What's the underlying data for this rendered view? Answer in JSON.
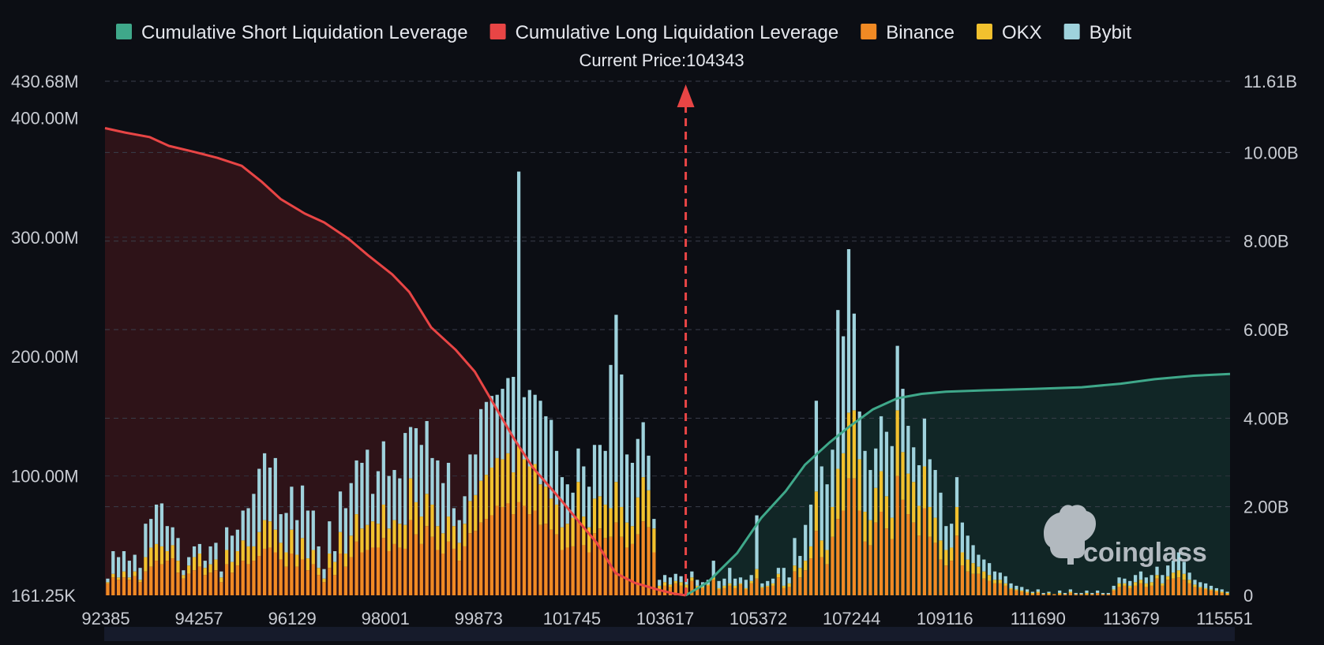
{
  "chart_data": {
    "type": "bar",
    "title": "",
    "current_price_label": "Current Price:104343",
    "current_price": 104343,
    "legend": [
      {
        "name": "Cumulative Short Liquidation Leverage",
        "color": "#3fa88a"
      },
      {
        "name": "Cumulative Long Liquidation Leverage",
        "color": "#e84545"
      },
      {
        "name": "Binance",
        "color": "#f18a24"
      },
      {
        "name": "OKX",
        "color": "#f2c12e"
      },
      {
        "name": "Bybit",
        "color": "#9fd2dc"
      }
    ],
    "x_range": [
      92385,
      115551
    ],
    "x_tick_labels": [
      "92385",
      "94257",
      "96129",
      "98001",
      "99873",
      "101745",
      "103617",
      "105372",
      "107244",
      "109116",
      "111690",
      "113679",
      "115551"
    ],
    "left_axis": {
      "ylim": [
        0,
        430.68
      ],
      "unit": "M",
      "ticks": [
        {
          "value": 0,
          "label": "161.25K"
        },
        {
          "value": 100,
          "label": "100.00M"
        },
        {
          "value": 200,
          "label": "200.00M"
        },
        {
          "value": 300,
          "label": "300.00M"
        },
        {
          "value": 400,
          "label": "400.00M"
        },
        {
          "value": 430.68,
          "label": "430.68M"
        }
      ]
    },
    "right_axis": {
      "ylim": [
        0,
        11.61
      ],
      "unit": "B",
      "ticks": [
        {
          "value": 0,
          "label": "0"
        },
        {
          "value": 2,
          "label": "2.00B"
        },
        {
          "value": 4,
          "label": "4.00B"
        },
        {
          "value": 6,
          "label": "6.00B"
        },
        {
          "value": 8,
          "label": "8.00B"
        },
        {
          "value": 10,
          "label": "10.00B"
        },
        {
          "value": 11.61,
          "label": "11.61B"
        }
      ]
    },
    "bar_series": [
      "Binance",
      "OKX",
      "Bybit"
    ],
    "bars_millions": [
      [
        10,
        1,
        3
      ],
      [
        15,
        3,
        19
      ],
      [
        13,
        2,
        17
      ],
      [
        15,
        5,
        17
      ],
      [
        13,
        2,
        14
      ],
      [
        16,
        4,
        14
      ],
      [
        11,
        2,
        10
      ],
      [
        20,
        12,
        28
      ],
      [
        24,
        16,
        24
      ],
      [
        29,
        14,
        33
      ],
      [
        26,
        15,
        36
      ],
      [
        29,
        8,
        21
      ],
      [
        31,
        11,
        15
      ],
      [
        19,
        10,
        19
      ],
      [
        14,
        3,
        4
      ],
      [
        18,
        7,
        7
      ],
      [
        21,
        11,
        9
      ],
      [
        24,
        11,
        8
      ],
      [
        17,
        6,
        6
      ],
      [
        19,
        7,
        15
      ],
      [
        21,
        9,
        14
      ],
      [
        11,
        4,
        5
      ],
      [
        26,
        12,
        19
      ],
      [
        19,
        9,
        22
      ],
      [
        25,
        12,
        18
      ],
      [
        29,
        17,
        25
      ],
      [
        26,
        15,
        32
      ],
      [
        29,
        12,
        44
      ],
      [
        33,
        20,
        53
      ],
      [
        39,
        24,
        56
      ],
      [
        40,
        22,
        45
      ],
      [
        36,
        19,
        60
      ],
      [
        30,
        14,
        24
      ],
      [
        24,
        12,
        33
      ],
      [
        35,
        20,
        36
      ],
      [
        24,
        10,
        29
      ],
      [
        30,
        18,
        44
      ],
      [
        21,
        10,
        40
      ],
      [
        26,
        12,
        33
      ],
      [
        17,
        6,
        18
      ],
      [
        11,
        3,
        8
      ],
      [
        23,
        12,
        27
      ],
      [
        17,
        11,
        9
      ],
      [
        35,
        18,
        34
      ],
      [
        24,
        11,
        38
      ],
      [
        32,
        18,
        44
      ],
      [
        45,
        23,
        45
      ],
      [
        36,
        20,
        55
      ],
      [
        38,
        21,
        63
      ],
      [
        40,
        22,
        23
      ],
      [
        40,
        20,
        44
      ],
      [
        48,
        28,
        53
      ],
      [
        37,
        19,
        44
      ],
      [
        43,
        20,
        42
      ],
      [
        40,
        20,
        38
      ],
      [
        39,
        20,
        77
      ],
      [
        63,
        35,
        43
      ],
      [
        51,
        27,
        62
      ],
      [
        43,
        23,
        60
      ],
      [
        58,
        27,
        61
      ],
      [
        49,
        27,
        39
      ],
      [
        38,
        20,
        55
      ],
      [
        35,
        17,
        42
      ],
      [
        45,
        21,
        45
      ],
      [
        39,
        19,
        15
      ],
      [
        29,
        15,
        19
      ],
      [
        41,
        19,
        23
      ],
      [
        52,
        27,
        39
      ],
      [
        54,
        30,
        34
      ],
      [
        61,
        35,
        60
      ],
      [
        64,
        37,
        61
      ],
      [
        67,
        40,
        60
      ],
      [
        75,
        40,
        53
      ],
      [
        74,
        40,
        59
      ],
      [
        77,
        42,
        63
      ],
      [
        68,
        35,
        80
      ],
      [
        78,
        47,
        230
      ],
      [
        75,
        39,
        52
      ],
      [
        68,
        40,
        64
      ],
      [
        71,
        39,
        58
      ],
      [
        59,
        34,
        70
      ],
      [
        60,
        31,
        59
      ],
      [
        55,
        26,
        66
      ],
      [
        51,
        25,
        45
      ],
      [
        38,
        19,
        42
      ],
      [
        40,
        20,
        33
      ],
      [
        41,
        24,
        21
      ],
      [
        61,
        34,
        28
      ],
      [
        42,
        24,
        42
      ],
      [
        36,
        21,
        34
      ],
      [
        52,
        29,
        45
      ],
      [
        56,
        27,
        43
      ],
      [
        48,
        28,
        45
      ],
      [
        49,
        24,
        120
      ],
      [
        61,
        34,
        140
      ],
      [
        49,
        25,
        111
      ],
      [
        40,
        21,
        57
      ],
      [
        43,
        15,
        53
      ],
      [
        51,
        31,
        49
      ],
      [
        62,
        37,
        46
      ],
      [
        57,
        31,
        29
      ],
      [
        36,
        20,
        8
      ],
      [
        5,
        3,
        5
      ],
      [
        8,
        3,
        6
      ],
      [
        7,
        2,
        6
      ],
      [
        10,
        2,
        6
      ],
      [
        8,
        3,
        5
      ],
      [
        6,
        3,
        5
      ],
      [
        12,
        3,
        5
      ],
      [
        6,
        2,
        5
      ],
      [
        6,
        1,
        4
      ],
      [
        8,
        1,
        4
      ],
      [
        13,
        2,
        14
      ],
      [
        5,
        1,
        6
      ],
      [
        6,
        2,
        6
      ],
      [
        8,
        2,
        13
      ],
      [
        6,
        2,
        6
      ],
      [
        9,
        1,
        5
      ],
      [
        5,
        1,
        7
      ],
      [
        10,
        2,
        5
      ],
      [
        14,
        8,
        45
      ],
      [
        6,
        1,
        3
      ],
      [
        7,
        1,
        4
      ],
      [
        8,
        2,
        4
      ],
      [
        15,
        3,
        5
      ],
      [
        6,
        2,
        15
      ],
      [
        7,
        3,
        5
      ],
      [
        20,
        5,
        23
      ],
      [
        15,
        8,
        10
      ],
      [
        21,
        8,
        30
      ],
      [
        31,
        10,
        35
      ],
      [
        54,
        33,
        76
      ],
      [
        32,
        14,
        62
      ],
      [
        26,
        12,
        55
      ],
      [
        49,
        25,
        48
      ],
      [
        64,
        42,
        133
      ],
      [
        71,
        48,
        98
      ],
      [
        98,
        55,
        137
      ],
      [
        98,
        57,
        81
      ],
      [
        71,
        43,
        40
      ],
      [
        45,
        25,
        51
      ],
      [
        42,
        21,
        42
      ],
      [
        61,
        29,
        33
      ],
      [
        70,
        34,
        46
      ],
      [
        56,
        27,
        54
      ],
      [
        47,
        18,
        60
      ],
      [
        100,
        55,
        54
      ],
      [
        80,
        40,
        53
      ],
      [
        68,
        34,
        40
      ],
      [
        61,
        34,
        29
      ],
      [
        50,
        25,
        34
      ],
      [
        73,
        35,
        40
      ],
      [
        49,
        25,
        40
      ],
      [
        44,
        21,
        40
      ],
      [
        30,
        16,
        40
      ],
      [
        25,
        13,
        20
      ],
      [
        29,
        11,
        20
      ],
      [
        50,
        24,
        25
      ],
      [
        25,
        11,
        25
      ],
      [
        20,
        10,
        20
      ],
      [
        18,
        9,
        15
      ],
      [
        18,
        6,
        10
      ],
      [
        14,
        6,
        10
      ],
      [
        12,
        5,
        10
      ],
      [
        10,
        3,
        7
      ],
      [
        10,
        3,
        6
      ],
      [
        8,
        2,
        6
      ],
      [
        5,
        1,
        4
      ],
      [
        4,
        1,
        3
      ],
      [
        3,
        1,
        3
      ],
      [
        2,
        1,
        2
      ],
      [
        1,
        1,
        1
      ],
      [
        2,
        1,
        2
      ],
      [
        1,
        0,
        1
      ],
      [
        1,
        1,
        1
      ],
      [
        1,
        0,
        0
      ],
      [
        1,
        1,
        2
      ],
      [
        1,
        0,
        1
      ],
      [
        2,
        1,
        2
      ],
      [
        1,
        0,
        1
      ],
      [
        1,
        0,
        1
      ],
      [
        1,
        1,
        2
      ],
      [
        1,
        0,
        1
      ],
      [
        2,
        0,
        2
      ],
      [
        1,
        0,
        1
      ],
      [
        1,
        0,
        1
      ],
      [
        4,
        1,
        3
      ],
      [
        7,
        3,
        5
      ],
      [
        8,
        2,
        4
      ],
      [
        6,
        2,
        4
      ],
      [
        8,
        3,
        6
      ],
      [
        10,
        3,
        7
      ],
      [
        7,
        3,
        5
      ],
      [
        8,
        3,
        6
      ],
      [
        14,
        3,
        7
      ],
      [
        8,
        2,
        7
      ],
      [
        13,
        3,
        9
      ],
      [
        14,
        5,
        10
      ],
      [
        15,
        6,
        15
      ],
      [
        13,
        5,
        10
      ],
      [
        10,
        3,
        6
      ],
      [
        7,
        2,
        4
      ],
      [
        6,
        1,
        4
      ],
      [
        5,
        1,
        4
      ],
      [
        4,
        1,
        3
      ],
      [
        3,
        1,
        2
      ],
      [
        2,
        1,
        2
      ],
      [
        1,
        1,
        1
      ]
    ],
    "cumulative_long_B": [
      [
        92385,
        10.55
      ],
      [
        92800,
        10.45
      ],
      [
        93300,
        10.35
      ],
      [
        93700,
        10.15
      ],
      [
        94200,
        10.02
      ],
      [
        94700,
        9.88
      ],
      [
        95200,
        9.7
      ],
      [
        95600,
        9.35
      ],
      [
        96000,
        8.95
      ],
      [
        96500,
        8.62
      ],
      [
        96900,
        8.42
      ],
      [
        97400,
        8.05
      ],
      [
        97800,
        7.68
      ],
      [
        98300,
        7.25
      ],
      [
        98650,
        6.85
      ],
      [
        99100,
        6.05
      ],
      [
        99600,
        5.55
      ],
      [
        100000,
        5.05
      ],
      [
        100400,
        4.3
      ],
      [
        100800,
        3.55
      ],
      [
        101200,
        2.88
      ],
      [
        101700,
        2.25
      ],
      [
        102100,
        1.72
      ],
      [
        102500,
        1.2
      ],
      [
        102900,
        0.5
      ],
      [
        103300,
        0.28
      ],
      [
        103800,
        0.12
      ],
      [
        104100,
        0.04
      ],
      [
        104343,
        0
      ]
    ],
    "cumulative_short_B": [
      [
        104343,
        0
      ],
      [
        104800,
        0.3
      ],
      [
        105400,
        0.95
      ],
      [
        105900,
        1.75
      ],
      [
        106400,
        2.35
      ],
      [
        106800,
        2.95
      ],
      [
        107300,
        3.45
      ],
      [
        107700,
        3.8
      ],
      [
        108200,
        4.2
      ],
      [
        108700,
        4.45
      ],
      [
        109200,
        4.55
      ],
      [
        109700,
        4.6
      ],
      [
        110500,
        4.63
      ],
      [
        111500,
        4.66
      ],
      [
        112500,
        4.7
      ],
      [
        113300,
        4.78
      ],
      [
        114000,
        4.88
      ],
      [
        114800,
        4.96
      ],
      [
        115551,
        5.0
      ]
    ],
    "watermark": "coinglass"
  }
}
